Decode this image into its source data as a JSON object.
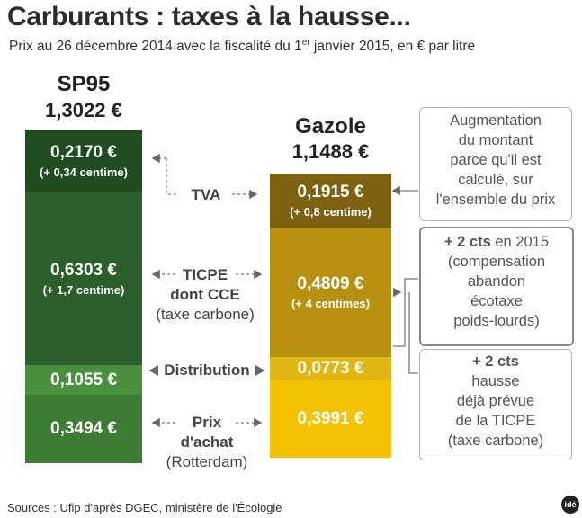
{
  "title": "Carburants : taxes à la hausse...",
  "subtitle_main": "Prix au 26 décembre 2014 avec la fiscalité du 1",
  "subtitle_sup": "er",
  "subtitle_end": " janvier 2015, en € par litre",
  "colors": {
    "sp95": [
      "#1f4d1f",
      "#2a5e2a",
      "#4a8f3e",
      "#3d7c33"
    ],
    "gazole": [
      "#7d6010",
      "#b7900f",
      "#e0b615",
      "#f5c200"
    ]
  },
  "chart_data": {
    "type": "bar",
    "title": "Carburants : taxes à la hausse...",
    "subtitle": "Prix au 26 décembre 2014 avec la fiscalité du 1er janvier 2015, en € par litre",
    "categories": [
      "SP95",
      "Gazole"
    ],
    "totals": [
      "1,3022 €",
      "1,1488 €"
    ],
    "stack_order": [
      "TVA",
      "TICPE dont CCE (taxe carbone)",
      "Distribution",
      "Prix d'achat (Rotterdam)"
    ],
    "series": [
      {
        "name": "TVA",
        "values": [
          0.217,
          0.1915
        ],
        "labels": [
          "0,2170 €",
          "0,1915 €"
        ],
        "changes": [
          "(+ 0,34 centime)",
          "(+ 0,8 centime)"
        ]
      },
      {
        "name": "TICPE dont CCE (taxe carbone)",
        "values": [
          0.6303,
          0.4809
        ],
        "labels": [
          "0,6303 €",
          "0,4809 €"
        ],
        "changes": [
          "(+ 1,7 centime)",
          "(+ 4 centimes)"
        ]
      },
      {
        "name": "Distribution",
        "values": [
          0.1055,
          0.0773
        ],
        "labels": [
          "0,1055 €",
          "0,0773 €"
        ],
        "changes": [
          "",
          ""
        ]
      },
      {
        "name": "Prix d'achat (Rotterdam)",
        "values": [
          0.3494,
          0.3991
        ],
        "labels": [
          "0,3494 €",
          "0,3991 €"
        ],
        "changes": [
          "",
          ""
        ]
      }
    ]
  },
  "sp95": {
    "name": "SP95",
    "total": "1,3022 €"
  },
  "gazole": {
    "name": "Gazole",
    "total": "1,1488 €"
  },
  "middle_labels": {
    "tva": "TVA",
    "ticpe_1": "TICPE",
    "ticpe_2": "dont CCE",
    "ticpe_3": "(taxe carbone)",
    "distribution": "Distribution",
    "prix_1": "Prix",
    "prix_2": "d'achat",
    "prix_3": "(Rotterdam)"
  },
  "notes": {
    "tva": [
      "Augmentation",
      "du montant",
      "parce qu'il est",
      "calculé, sur",
      "l'ensemble du prix"
    ],
    "ticpe_bold": "+ 2 cts",
    "ticpe_first_rest": " en 2015",
    "ticpe": [
      "(compensation",
      "abandon",
      "écotaxe",
      "poids-lourds)"
    ],
    "hausse_bold": "+ 2 cts",
    "hausse": [
      "hausse",
      "déjà prévue",
      "de la TICPE",
      "(taxe carbone)"
    ]
  },
  "sources": "Sources : Ufip d'après DGEC, ministère de l'Écologie",
  "logo": "idé"
}
